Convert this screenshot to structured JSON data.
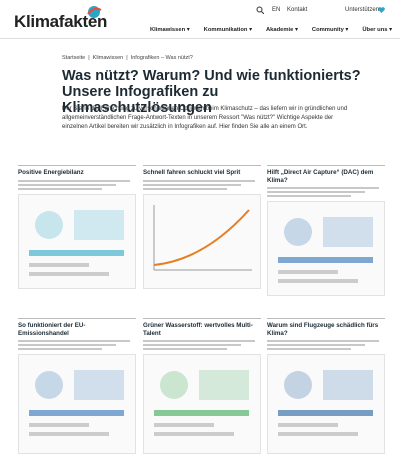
{
  "header": {
    "logo": "Klimafakten",
    "lang": "EN",
    "contact": "Kontakt",
    "support": "Unterstützen",
    "nav": [
      "Klimawissen",
      "Kommunikation",
      "Akademie",
      "Community",
      "Über uns"
    ]
  },
  "breadcrumb": [
    "Startseite",
    "Klimawissen",
    "Infografiken – Was nützt?"
  ],
  "title": "Was nützt? Warum? Und wie funktionierts? Unsere Infografiken zu Klimaschutzlösungen",
  "intro": "Der Stand der Forschung zu verschiedenen Optionen beim Klimaschutz – das liefern wir in gründlichen und allgemeinverständlichen Frage-Antwort-Texten in unserem Ressort \"Was nützt?\" Wichtige Aspekte der einzelnen Artikel bereiten wir zusätzlich in Infografiken auf. Hier finden Sie alle an einem Ort.",
  "cards": [
    {
      "title": "Positive Energiebilanz"
    },
    {
      "title": "Schnell fahren schluckt viel Sprit"
    },
    {
      "title": "Hilft „Direct Air Capture“ (DAC) dem Klima?"
    },
    {
      "title": "So funktioniert der EU-Emissionshandel"
    },
    {
      "title": "Grüner Wasserstoff: wertvolles Multi-Talent"
    },
    {
      "title": "Warum sind Flugzeuge schädlich fürs Klima?"
    }
  ]
}
